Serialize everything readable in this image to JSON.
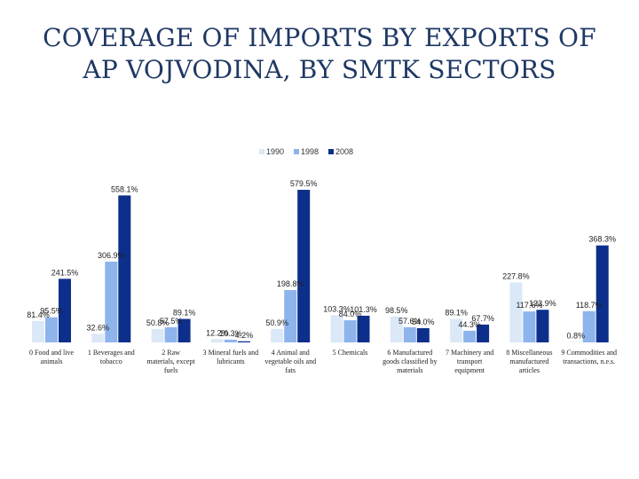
{
  "page": {
    "title_line1": "COVERAGE OF IMPORTS BY EXPORTS OF",
    "title_line2": "AP VOJVODINA, BY SMTK SECTORS"
  },
  "chart_data": {
    "type": "bar",
    "title": "COVERAGE OF IMPORTS BY EXPORTS OF AP VOJVODINA, BY SMTK SECTORS",
    "xlabel": "",
    "ylabel": "",
    "ylim": [
      0,
      600
    ],
    "grid": false,
    "legend": "top-center",
    "categories": [
      [
        "0 Food and live",
        "animals"
      ],
      [
        "1 Beverages and",
        "tobacco"
      ],
      [
        "2 Raw",
        "materials, except",
        "fuels"
      ],
      [
        "3 Mineral fuels and",
        "lubricants"
      ],
      [
        "4 Animal and",
        "vegetable oils and",
        "fats"
      ],
      [
        "5 Chemicals"
      ],
      [
        "6 Manufactured",
        "goods classified by",
        "materials"
      ],
      [
        "7 Machinery and",
        "transport",
        "equipment"
      ],
      [
        "8 Miscellaneous",
        "manufactured",
        "articles"
      ],
      [
        "9 Commodities and",
        "transactions, n.e.s."
      ]
    ],
    "series": [
      {
        "name": "1990",
        "color": "#dbe8f7",
        "values": [
          81.4,
          32.6,
          50.8,
          12.2,
          50.9,
          103.3,
          98.5,
          89.1,
          227.8,
          0.8
        ],
        "labels": [
          "81.4%",
          "32.6%",
          "50.8%",
          "12.2%",
          "50.9%",
          "103.3%",
          "98.5%",
          "89.1%",
          "227.8%",
          "0.8%"
        ]
      },
      {
        "name": "1998",
        "color": "#8eb4ec",
        "values": [
          95.5,
          306.9,
          57.5,
          10.3,
          198.8,
          84.0,
          57.6,
          44.3,
          117.6,
          118.7
        ],
        "labels": [
          "95.5%",
          "306.9%",
          "57.5%",
          "10.3%",
          "198.8%",
          "84.0%",
          "57.6%",
          "44.3%",
          "117.6%",
          "118.7%"
        ]
      },
      {
        "name": "2008",
        "color": "#0d2f8c",
        "values": [
          241.5,
          558.1,
          89.1,
          4.2,
          579.5,
          101.3,
          54.0,
          67.7,
          123.9,
          368.3
        ],
        "labels": [
          "241.5%",
          "558.1%",
          "89.1%",
          "4.2%",
          "579.5%",
          "101.3%",
          "54.0%",
          "67.7%",
          "123.9%",
          "368.3%"
        ]
      }
    ]
  }
}
